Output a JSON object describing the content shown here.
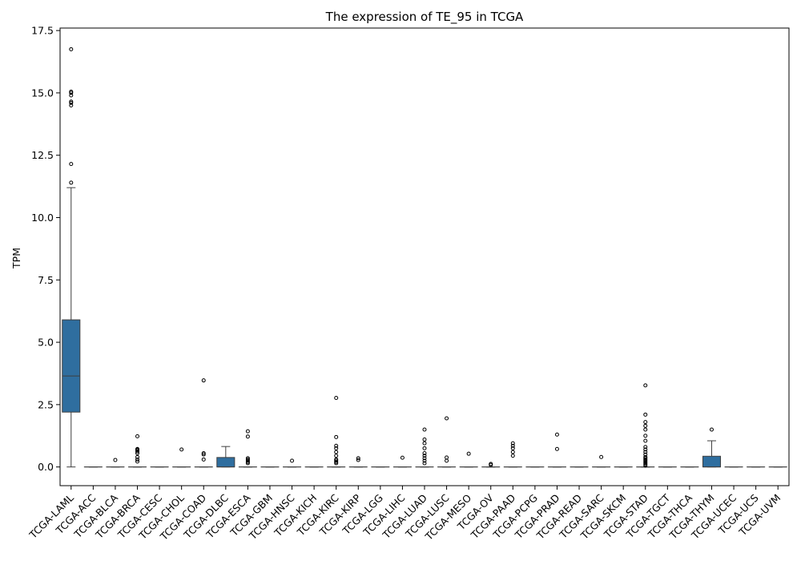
{
  "chart_data": {
    "type": "box",
    "title": "The expression of TE_95 in TCGA",
    "xlabel": "",
    "ylabel": "TPM",
    "ylim": [
      -0.75,
      17.6
    ],
    "yticks": [
      0.0,
      2.5,
      5.0,
      7.5,
      10.0,
      12.5,
      15.0,
      17.5
    ],
    "ytick_labels": [
      "0.0",
      "2.5",
      "5.0",
      "7.5",
      "10.0",
      "12.5",
      "15.0",
      "17.5"
    ],
    "box_color": "#2f6e9f",
    "categories": [
      "TCGA-LAML",
      "TCGA-ACC",
      "TCGA-BLCA",
      "TCGA-BRCA",
      "TCGA-CESC",
      "TCGA-CHOL",
      "TCGA-COAD",
      "TCGA-DLBC",
      "TCGA-ESCA",
      "TCGA-GBM",
      "TCGA-HNSC",
      "TCGA-KICH",
      "TCGA-KIRC",
      "TCGA-KIRP",
      "TCGA-LGG",
      "TCGA-LIHC",
      "TCGA-LUAD",
      "TCGA-LUSC",
      "TCGA-MESO",
      "TCGA-OV",
      "TCGA-PAAD",
      "TCGA-PCPG",
      "TCGA-PRAD",
      "TCGA-READ",
      "TCGA-SARC",
      "TCGA-SKCM",
      "TCGA-STAD",
      "TCGA-TGCT",
      "TCGA-THCA",
      "TCGA-THYM",
      "TCGA-UCEC",
      "TCGA-UCS",
      "TCGA-UVM"
    ],
    "boxes": [
      {
        "min": 0.0,
        "q1": 2.2,
        "median": 3.65,
        "q3": 5.9,
        "max": 11.2,
        "outliers": [
          11.4,
          12.15,
          14.5,
          14.6,
          14.65,
          14.9,
          15.0,
          15.05,
          16.75
        ]
      },
      {
        "min": 0,
        "q1": 0,
        "median": 0,
        "q3": 0,
        "max": 0,
        "outliers": []
      },
      {
        "min": 0,
        "q1": 0,
        "median": 0,
        "q3": 0,
        "max": 0,
        "outliers": [
          0.28
        ]
      },
      {
        "min": 0,
        "q1": 0,
        "median": 0,
        "q3": 0,
        "max": 0,
        "outliers": [
          0.22,
          0.3,
          0.4,
          0.55,
          0.62,
          0.67,
          0.7,
          0.72,
          1.23
        ]
      },
      {
        "min": 0,
        "q1": 0,
        "median": 0,
        "q3": 0,
        "max": 0,
        "outliers": []
      },
      {
        "min": 0,
        "q1": 0,
        "median": 0,
        "q3": 0,
        "max": 0,
        "outliers": [
          0.7
        ]
      },
      {
        "min": 0,
        "q1": 0,
        "median": 0,
        "q3": 0,
        "max": 0,
        "outliers": [
          0.3,
          0.5,
          0.55,
          3.47
        ]
      },
      {
        "min": 0.0,
        "q1": 0.0,
        "median": 0.0,
        "q3": 0.38,
        "max": 0.82,
        "outliers": []
      },
      {
        "min": 0,
        "q1": 0,
        "median": 0,
        "q3": 0,
        "max": 0,
        "outliers": [
          0.15,
          0.2,
          0.25,
          0.3,
          0.35,
          1.22,
          1.43
        ]
      },
      {
        "min": 0,
        "q1": 0,
        "median": 0,
        "q3": 0,
        "max": 0,
        "outliers": []
      },
      {
        "min": 0,
        "q1": 0,
        "median": 0,
        "q3": 0,
        "max": 0,
        "outliers": [
          0.25
        ]
      },
      {
        "min": 0,
        "q1": 0,
        "median": 0,
        "q3": 0,
        "max": 0,
        "outliers": []
      },
      {
        "min": 0,
        "q1": 0,
        "median": 0,
        "q3": 0,
        "max": 0,
        "outliers": [
          0.15,
          0.2,
          0.25,
          0.3,
          0.45,
          0.6,
          0.75,
          0.85,
          1.2,
          2.77
        ]
      },
      {
        "min": 0,
        "q1": 0,
        "median": 0,
        "q3": 0,
        "max": 0,
        "outliers": [
          0.28,
          0.35
        ]
      },
      {
        "min": 0,
        "q1": 0,
        "median": 0,
        "q3": 0,
        "max": 0,
        "outliers": []
      },
      {
        "min": 0,
        "q1": 0,
        "median": 0,
        "q3": 0,
        "max": 0,
        "outliers": [
          0.37
        ]
      },
      {
        "min": 0,
        "q1": 0,
        "median": 0,
        "q3": 0,
        "max": 0,
        "outliers": [
          0.15,
          0.25,
          0.35,
          0.45,
          0.55,
          0.75,
          0.95,
          1.1,
          1.5
        ]
      },
      {
        "min": 0,
        "q1": 0,
        "median": 0,
        "q3": 0,
        "max": 0,
        "outliers": [
          0.25,
          0.38,
          1.95
        ]
      },
      {
        "min": 0,
        "q1": 0,
        "median": 0,
        "q3": 0,
        "max": 0,
        "outliers": [
          0.53
        ]
      },
      {
        "min": 0,
        "q1": 0,
        "median": 0,
        "q3": 0,
        "max": 0,
        "outliers": [
          0.08,
          0.12
        ]
      },
      {
        "min": 0,
        "q1": 0,
        "median": 0,
        "q3": 0,
        "max": 0,
        "outliers": [
          0.45,
          0.6,
          0.75,
          0.85,
          0.95
        ]
      },
      {
        "min": 0,
        "q1": 0,
        "median": 0,
        "q3": 0,
        "max": 0,
        "outliers": []
      },
      {
        "min": 0,
        "q1": 0,
        "median": 0,
        "q3": 0,
        "max": 0,
        "outliers": [
          0.72,
          1.3
        ]
      },
      {
        "min": 0,
        "q1": 0,
        "median": 0,
        "q3": 0,
        "max": 0,
        "outliers": []
      },
      {
        "min": 0,
        "q1": 0,
        "median": 0,
        "q3": 0,
        "max": 0,
        "outliers": [
          0.4
        ]
      },
      {
        "min": 0,
        "q1": 0,
        "median": 0,
        "q3": 0,
        "max": 0,
        "outliers": []
      },
      {
        "min": 0,
        "q1": 0,
        "median": 0,
        "q3": 0,
        "max": 0,
        "outliers": [
          0.05,
          0.1,
          0.15,
          0.2,
          0.25,
          0.3,
          0.35,
          0.4,
          0.5,
          0.6,
          0.7,
          0.8,
          1.05,
          1.25,
          1.5,
          1.65,
          1.8,
          2.1,
          3.27
        ]
      },
      {
        "min": 0,
        "q1": 0,
        "median": 0,
        "q3": 0,
        "max": 0,
        "outliers": []
      },
      {
        "min": 0,
        "q1": 0,
        "median": 0,
        "q3": 0,
        "max": 0,
        "outliers": []
      },
      {
        "min": 0.0,
        "q1": 0.0,
        "median": 0.0,
        "q3": 0.43,
        "max": 1.05,
        "outliers": [
          1.5
        ]
      },
      {
        "min": 0,
        "q1": 0,
        "median": 0,
        "q3": 0,
        "max": 0,
        "outliers": []
      },
      {
        "min": 0,
        "q1": 0,
        "median": 0,
        "q3": 0,
        "max": 0,
        "outliers": []
      },
      {
        "min": 0,
        "q1": 0,
        "median": 0,
        "q3": 0,
        "max": 0,
        "outliers": []
      }
    ]
  }
}
